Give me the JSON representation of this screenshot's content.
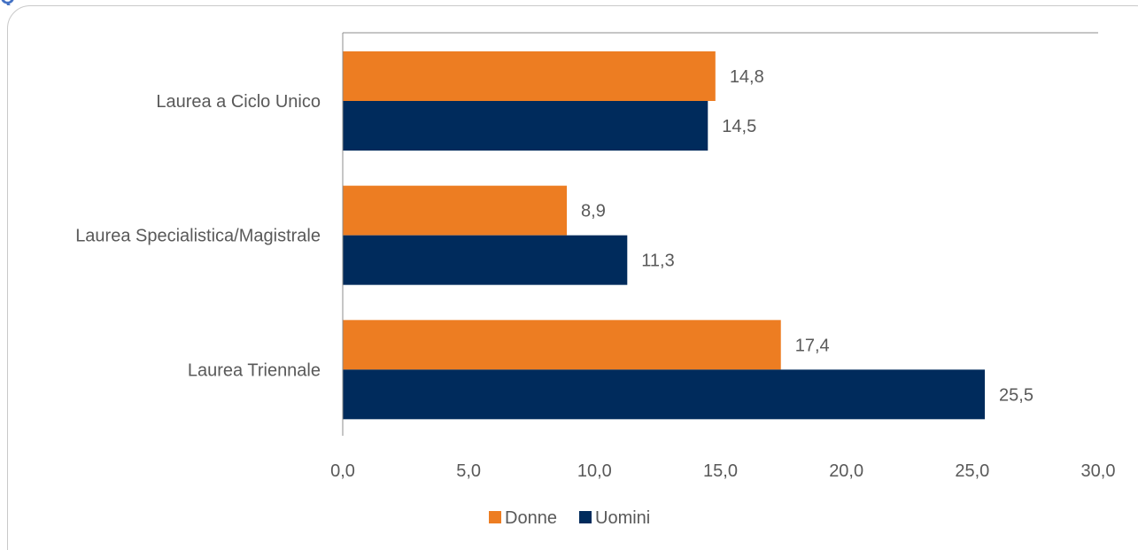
{
  "header": {
    "title": "Q"
  },
  "chart_data": {
    "type": "bar",
    "orientation": "horizontal",
    "title": "",
    "xlabel": "",
    "ylabel": "",
    "categories": [
      "Laurea a Ciclo Unico",
      "Laurea Specialistica/Magistrale",
      "Laurea Triennale"
    ],
    "series": [
      {
        "name": "Donne",
        "color": "#ed7d22",
        "values": [
          14.8,
          8.9,
          17.4
        ],
        "labels": [
          "14,8",
          "8,9",
          "17,4"
        ]
      },
      {
        "name": "Uomini",
        "color": "#002b5c",
        "values": [
          14.5,
          11.3,
          25.5
        ],
        "labels": [
          "14,5",
          "11,3",
          "25,5"
        ]
      }
    ],
    "xlim": [
      0,
      30
    ],
    "ticks": [
      0,
      5,
      10,
      15,
      20,
      25,
      30
    ],
    "tick_labels": [
      "0,0",
      "5,0",
      "10,0",
      "15,0",
      "20,0",
      "25,0",
      "30,0"
    ],
    "grid": false,
    "legend_position": "bottom",
    "data_labels": true
  }
}
